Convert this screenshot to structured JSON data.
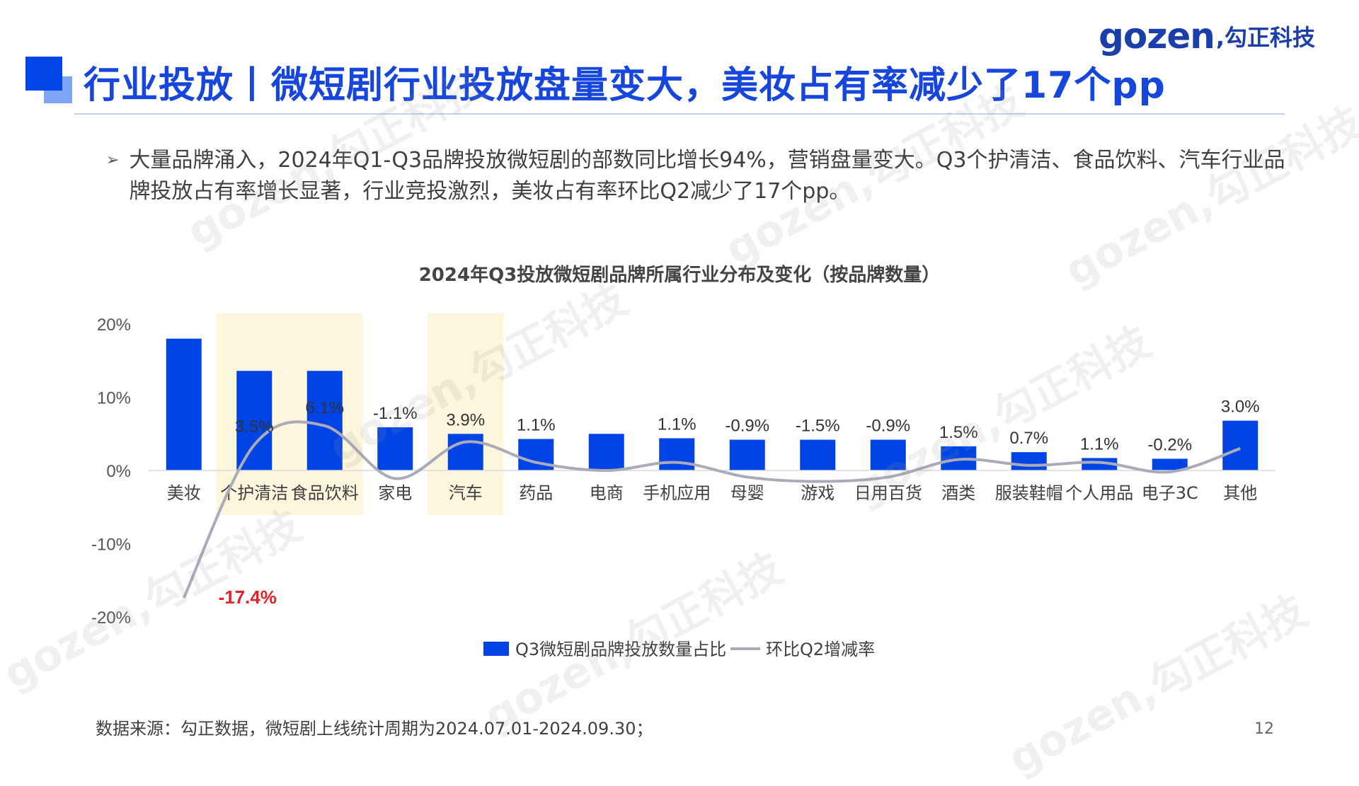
{
  "logo": {
    "brand": "gozen",
    "brand_cn": ",勾正科技"
  },
  "title": "行业投放丨微短剧行业投放盘量变大，美妆占有率减少了17个pp",
  "bullet": {
    "arrow": "➢",
    "text": "大量品牌涌入，2024年Q1-Q3品牌投放微短剧的部数同比增长94%，营销盘量变大。Q3个护清洁、食品饮料、汽车行业品牌投放占有率增长显著，行业竞投激烈，美妆占有率环比Q2减少了17个pp。"
  },
  "watermark": "gozen,勾正科技",
  "chart_data": {
    "type": "bar",
    "title": "2024年Q3投放微短剧品牌所属行业分布及变化（按品牌数量）",
    "categories": [
      "美妆",
      "个护清洁",
      "食品饮料",
      "家电",
      "汽车",
      "药品",
      "电商",
      "手机应用",
      "母婴",
      "游戏",
      "日用百货",
      "酒类",
      "服装鞋帽",
      "个人用品",
      "电子3C",
      "其他"
    ],
    "y_tick_labels": [
      "20%",
      "10%",
      "0%",
      "-10%",
      "-20%"
    ],
    "ylim": [
      -20,
      20
    ],
    "highlighted_categories": [
      "个护清洁",
      "食品饮料",
      "汽车"
    ],
    "series": [
      {
        "name": "Q3微短剧品牌投放数量占比",
        "type": "bar",
        "color": "#0044e6",
        "values": [
          18.0,
          13.6,
          13.6,
          5.9,
          5.0,
          4.3,
          5.0,
          4.4,
          4.2,
          4.2,
          4.2,
          3.3,
          2.5,
          1.7,
          1.6,
          6.8
        ]
      },
      {
        "name": "环比Q2增减率",
        "type": "line",
        "color": "#a9abb8",
        "values": [
          -17.4,
          3.5,
          6.1,
          -1.1,
          3.9,
          1.1,
          0.0,
          1.1,
          -0.9,
          -1.5,
          -0.9,
          1.5,
          0.7,
          1.1,
          -0.2,
          3.0
        ],
        "labels": [
          "-17.4%",
          "3.5%",
          "6.1%",
          "-1.1%",
          "3.9%",
          "1.1%",
          "",
          "1.1%",
          "-0.9%",
          "-1.5%",
          "-0.9%",
          "1.5%",
          "0.7%",
          "1.1%",
          "-0.2%",
          "3.0%"
        ],
        "emphasis_color": "#e8202a"
      }
    ],
    "legend_position": "bottom"
  },
  "source": "数据来源：勾正数据，微短剧上线统计周期为2024.07.01-2024.09.30；",
  "page_number": "12"
}
